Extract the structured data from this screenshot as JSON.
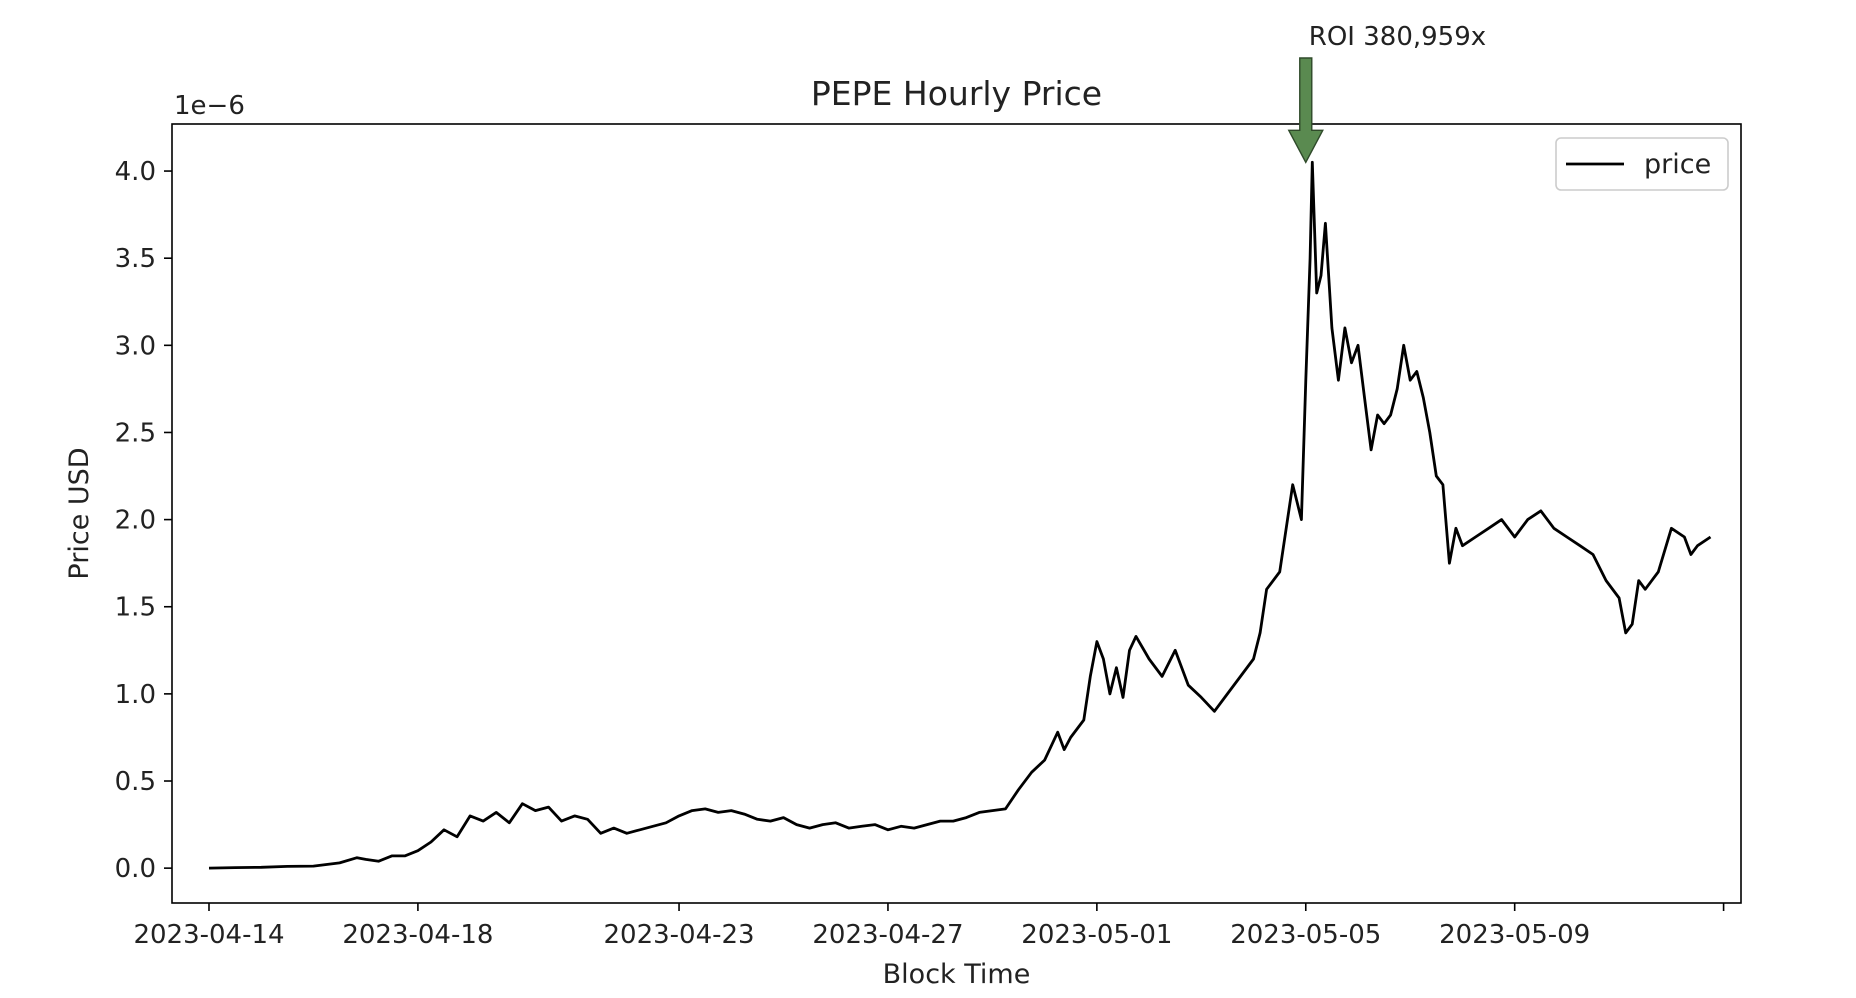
{
  "chart_data": {
    "type": "line",
    "title": "PEPE Hourly Price",
    "xlabel": "Block Time",
    "ylabel": "Price USD",
    "y_offset_label": "1e−6",
    "y_scale_factor": 1e-06,
    "xlim": [
      "2023-04-13 07:00",
      "2023-05-13 08:00"
    ],
    "ylim": [
      -0.2,
      4.27
    ],
    "x_ticks": [
      "2023-04-14",
      "2023-04-18",
      "2023-04-23",
      "2023-04-27",
      "2023-05-01",
      "2023-05-05",
      "2023-05-09",
      "2023-05-13"
    ],
    "x_tick_labels": [
      "2023-04-14",
      "2023-04-18",
      "2023-04-23",
      "2023-04-27",
      "2023-05-01",
      "2023-05-05",
      "2023-05-09",
      ""
    ],
    "y_ticks": [
      0.0,
      0.5,
      1.0,
      1.5,
      2.0,
      2.5,
      3.0,
      3.5,
      4.0
    ],
    "y_tick_labels": [
      "0.0",
      "0.5",
      "1.0",
      "1.5",
      "2.0",
      "2.5",
      "3.0",
      "3.5",
      "4.0"
    ],
    "grid": false,
    "legend": {
      "position": "top-right",
      "entries": [
        {
          "label": "price",
          "color": "#000000"
        }
      ]
    },
    "annotation": {
      "text": "ROI 380,959x",
      "x": "2023-05-05 00:00",
      "y": 4.05,
      "arrow_color": "#5a8a50"
    },
    "series": [
      {
        "name": "price",
        "color": "#000000",
        "points": [
          [
            "2023-04-14 00:00",
            0.0
          ],
          [
            "2023-04-14 12:00",
            0.003
          ],
          [
            "2023-04-15 00:00",
            0.005
          ],
          [
            "2023-04-15 12:00",
            0.01
          ],
          [
            "2023-04-16 00:00",
            0.012
          ],
          [
            "2023-04-16 12:00",
            0.03
          ],
          [
            "2023-04-16 20:00",
            0.06
          ],
          [
            "2023-04-17 00:00",
            0.05
          ],
          [
            "2023-04-17 06:00",
            0.04
          ],
          [
            "2023-04-17 12:00",
            0.07
          ],
          [
            "2023-04-17 18:00",
            0.07
          ],
          [
            "2023-04-18 00:00",
            0.1
          ],
          [
            "2023-04-18 06:00",
            0.15
          ],
          [
            "2023-04-18 12:00",
            0.22
          ],
          [
            "2023-04-18 18:00",
            0.18
          ],
          [
            "2023-04-19 00:00",
            0.3
          ],
          [
            "2023-04-19 06:00",
            0.27
          ],
          [
            "2023-04-19 12:00",
            0.32
          ],
          [
            "2023-04-19 18:00",
            0.26
          ],
          [
            "2023-04-20 00:00",
            0.37
          ],
          [
            "2023-04-20 06:00",
            0.33
          ],
          [
            "2023-04-20 12:00",
            0.35
          ],
          [
            "2023-04-20 18:00",
            0.27
          ],
          [
            "2023-04-21 00:00",
            0.3
          ],
          [
            "2023-04-21 06:00",
            0.28
          ],
          [
            "2023-04-21 12:00",
            0.2
          ],
          [
            "2023-04-21 18:00",
            0.23
          ],
          [
            "2023-04-22 00:00",
            0.2
          ],
          [
            "2023-04-22 06:00",
            0.22
          ],
          [
            "2023-04-22 12:00",
            0.24
          ],
          [
            "2023-04-22 18:00",
            0.26
          ],
          [
            "2023-04-23 00:00",
            0.3
          ],
          [
            "2023-04-23 06:00",
            0.33
          ],
          [
            "2023-04-23 12:00",
            0.34
          ],
          [
            "2023-04-23 18:00",
            0.32
          ],
          [
            "2023-04-24 00:00",
            0.33
          ],
          [
            "2023-04-24 06:00",
            0.31
          ],
          [
            "2023-04-24 12:00",
            0.28
          ],
          [
            "2023-04-24 18:00",
            0.27
          ],
          [
            "2023-04-25 00:00",
            0.29
          ],
          [
            "2023-04-25 06:00",
            0.25
          ],
          [
            "2023-04-25 12:00",
            0.23
          ],
          [
            "2023-04-25 18:00",
            0.25
          ],
          [
            "2023-04-26 00:00",
            0.26
          ],
          [
            "2023-04-26 06:00",
            0.23
          ],
          [
            "2023-04-26 12:00",
            0.24
          ],
          [
            "2023-04-26 18:00",
            0.25
          ],
          [
            "2023-04-27 00:00",
            0.22
          ],
          [
            "2023-04-27 06:00",
            0.24
          ],
          [
            "2023-04-27 12:00",
            0.23
          ],
          [
            "2023-04-27 18:00",
            0.25
          ],
          [
            "2023-04-28 00:00",
            0.27
          ],
          [
            "2023-04-28 06:00",
            0.27
          ],
          [
            "2023-04-28 12:00",
            0.29
          ],
          [
            "2023-04-28 18:00",
            0.32
          ],
          [
            "2023-04-29 00:00",
            0.33
          ],
          [
            "2023-04-29 06:00",
            0.34
          ],
          [
            "2023-04-29 12:00",
            0.45
          ],
          [
            "2023-04-29 18:00",
            0.55
          ],
          [
            "2023-04-30 00:00",
            0.62
          ],
          [
            "2023-04-30 06:00",
            0.78
          ],
          [
            "2023-04-30 09:00",
            0.68
          ],
          [
            "2023-04-30 12:00",
            0.75
          ],
          [
            "2023-04-30 18:00",
            0.85
          ],
          [
            "2023-04-30 21:00",
            1.1
          ],
          [
            "2023-05-01 00:00",
            1.3
          ],
          [
            "2023-05-01 03:00",
            1.2
          ],
          [
            "2023-05-01 06:00",
            1.0
          ],
          [
            "2023-05-01 09:00",
            1.15
          ],
          [
            "2023-05-01 12:00",
            0.98
          ],
          [
            "2023-05-01 15:00",
            1.25
          ],
          [
            "2023-05-01 18:00",
            1.33
          ],
          [
            "2023-05-02 00:00",
            1.2
          ],
          [
            "2023-05-02 06:00",
            1.1
          ],
          [
            "2023-05-02 12:00",
            1.25
          ],
          [
            "2023-05-02 18:00",
            1.05
          ],
          [
            "2023-05-03 00:00",
            0.98
          ],
          [
            "2023-05-03 06:00",
            0.9
          ],
          [
            "2023-05-03 12:00",
            1.0
          ],
          [
            "2023-05-03 18:00",
            1.1
          ],
          [
            "2023-05-04 00:00",
            1.2
          ],
          [
            "2023-05-04 03:00",
            1.35
          ],
          [
            "2023-05-04 06:00",
            1.6
          ],
          [
            "2023-05-04 12:00",
            1.7
          ],
          [
            "2023-05-04 18:00",
            2.2
          ],
          [
            "2023-05-04 20:00",
            2.1
          ],
          [
            "2023-05-04 22:00",
            2.0
          ],
          [
            "2023-05-05 00:00",
            2.8
          ],
          [
            "2023-05-05 02:00",
            3.5
          ],
          [
            "2023-05-05 03:00",
            4.05
          ],
          [
            "2023-05-05 05:00",
            3.3
          ],
          [
            "2023-05-05 07:00",
            3.4
          ],
          [
            "2023-05-05 09:00",
            3.7
          ],
          [
            "2023-05-05 12:00",
            3.1
          ],
          [
            "2023-05-05 15:00",
            2.8
          ],
          [
            "2023-05-05 18:00",
            3.1
          ],
          [
            "2023-05-05 21:00",
            2.9
          ],
          [
            "2023-05-06 00:00",
            3.0
          ],
          [
            "2023-05-06 03:00",
            2.7
          ],
          [
            "2023-05-06 06:00",
            2.4
          ],
          [
            "2023-05-06 09:00",
            2.6
          ],
          [
            "2023-05-06 12:00",
            2.55
          ],
          [
            "2023-05-06 15:00",
            2.6
          ],
          [
            "2023-05-06 18:00",
            2.75
          ],
          [
            "2023-05-06 21:00",
            3.0
          ],
          [
            "2023-05-07 00:00",
            2.8
          ],
          [
            "2023-05-07 03:00",
            2.85
          ],
          [
            "2023-05-07 06:00",
            2.7
          ],
          [
            "2023-05-07 09:00",
            2.5
          ],
          [
            "2023-05-07 12:00",
            2.25
          ],
          [
            "2023-05-07 15:00",
            2.2
          ],
          [
            "2023-05-07 18:00",
            1.75
          ],
          [
            "2023-05-07 21:00",
            1.95
          ],
          [
            "2023-05-08 00:00",
            1.85
          ],
          [
            "2023-05-08 06:00",
            1.9
          ],
          [
            "2023-05-08 12:00",
            1.95
          ],
          [
            "2023-05-08 18:00",
            2.0
          ],
          [
            "2023-05-09 00:00",
            1.9
          ],
          [
            "2023-05-09 06:00",
            2.0
          ],
          [
            "2023-05-09 12:00",
            2.05
          ],
          [
            "2023-05-09 18:00",
            1.95
          ],
          [
            "2023-05-10 00:00",
            1.9
          ],
          [
            "2023-05-10 06:00",
            1.85
          ],
          [
            "2023-05-10 12:00",
            1.8
          ],
          [
            "2023-05-10 18:00",
            1.65
          ],
          [
            "2023-05-11 00:00",
            1.55
          ],
          [
            "2023-05-11 03:00",
            1.35
          ],
          [
            "2023-05-11 06:00",
            1.4
          ],
          [
            "2023-05-11 09:00",
            1.65
          ],
          [
            "2023-05-11 12:00",
            1.6
          ],
          [
            "2023-05-11 18:00",
            1.7
          ],
          [
            "2023-05-12 00:00",
            1.95
          ],
          [
            "2023-05-12 06:00",
            1.9
          ],
          [
            "2023-05-12 09:00",
            1.8
          ],
          [
            "2023-05-12 12:00",
            1.85
          ],
          [
            "2023-05-12 18:00",
            1.9
          ]
        ]
      }
    ]
  }
}
